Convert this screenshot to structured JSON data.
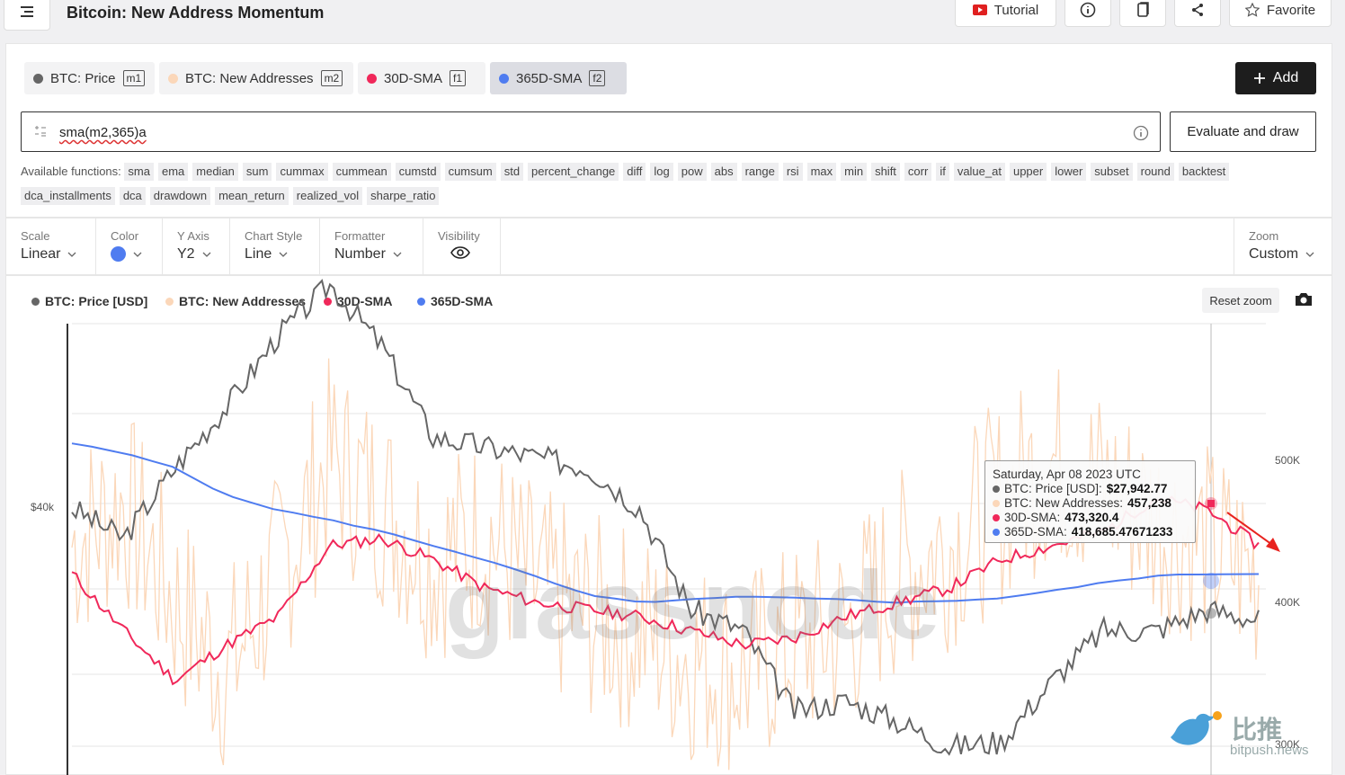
{
  "header": {
    "title": "Bitcoin: New Address Momentum",
    "tutorial_label": "Tutorial",
    "favorite_label": "Favorite"
  },
  "metrics": [
    {
      "label": "BTC: Price",
      "tag": "m1",
      "color": "#666666"
    },
    {
      "label": "BTC: New Addresses",
      "tag": "m2",
      "color": "#fbd7b9"
    },
    {
      "label": "30D-SMA",
      "tag": "f1",
      "color": "#f0285a"
    },
    {
      "label": "365D-SMA",
      "tag": "f2",
      "color": "#4f7cf0"
    }
  ],
  "add_label": "Add",
  "formula": {
    "value": "sma(m2,365)a"
  },
  "evaluate_label": "Evaluate and draw",
  "functions_label": "Available functions:",
  "functions": [
    "sma",
    "ema",
    "median",
    "sum",
    "cummax",
    "cummean",
    "cumstd",
    "cumsum",
    "std",
    "percent_change",
    "diff",
    "log",
    "pow",
    "abs",
    "range",
    "rsi",
    "max",
    "min",
    "shift",
    "corr",
    "if",
    "value_at",
    "upper",
    "lower",
    "subset",
    "round",
    "backtest",
    "dca_installments",
    "dca",
    "drawdown",
    "mean_return",
    "realized_vol",
    "sharpe_ratio"
  ],
  "settings": {
    "scale": {
      "label": "Scale",
      "value": "Linear"
    },
    "color": {
      "label": "Color",
      "value": "#4f7cf0"
    },
    "yaxis": {
      "label": "Y Axis",
      "value": "Y2"
    },
    "style": {
      "label": "Chart Style",
      "value": "Line"
    },
    "formatter": {
      "label": "Formatter",
      "value": "Number"
    },
    "visibility": {
      "label": "Visibility"
    },
    "zoom": {
      "label": "Zoom",
      "value": "Custom"
    }
  },
  "legend": [
    "BTC: Price [USD]",
    "BTC: New Addresses",
    "30D-SMA",
    "365D-SMA"
  ],
  "reset_zoom_label": "Reset zoom",
  "tooltip": {
    "date": "Saturday, Apr 08 2023 UTC",
    "rows": [
      {
        "label": "BTC: Price [USD]:",
        "value": "$27,942.77"
      },
      {
        "label": "BTC: New Addresses:",
        "value": "457,238"
      },
      {
        "label": "30D-SMA:",
        "value": "473,320.4"
      },
      {
        "label": "365D-SMA:",
        "value": "418,685.47671233"
      }
    ]
  },
  "axes": {
    "left_tick": "$40k",
    "right_ticks": [
      "500K",
      "400K",
      "300K"
    ]
  },
  "watermark": "glassnode",
  "bitpush": {
    "cn": "比推",
    "url": "bitpush.news"
  },
  "chart_data": {
    "type": "line",
    "y2_ticks": [
      300000,
      400000,
      500000
    ],
    "y_ticks": [
      40000
    ],
    "series": [
      {
        "name": "BTC: Price [USD]",
        "axis": "left",
        "color": "#666666",
        "values": [
          40000,
          37000,
          44000,
          50000,
          57000,
          62000,
          56000,
          47000,
          46000,
          45000,
          44000,
          40000,
          30000,
          28000,
          20000,
          21000,
          19000,
          16500,
          17000,
          23000,
          28000,
          27942,
          30000,
          29000
        ]
      },
      {
        "name": "BTC: New Addresses",
        "axis": "right",
        "color": "#fbd7b9",
        "values": [
          440000,
          470000,
          400000,
          350000,
          420000,
          500000,
          470000,
          430000,
          450000,
          410000,
          390000,
          380000,
          360000,
          350000,
          370000,
          380000,
          420000,
          440000,
          470000,
          500000,
          480000,
          457238,
          440000,
          420000
        ]
      },
      {
        "name": "30D-SMA",
        "axis": "right",
        "color": "#f0285a",
        "values": [
          420000,
          380000,
          345000,
          370000,
          390000,
          440000,
          445000,
          430000,
          410000,
          400000,
          395000,
          390000,
          380000,
          370000,
          375000,
          390000,
          400000,
          410000,
          430000,
          440000,
          450000,
          473320,
          465000,
          440000
        ]
      },
      {
        "name": "365D-SMA",
        "axis": "right",
        "color": "#4f7cf0",
        "values": [
          512000,
          505000,
          495000,
          475000,
          465000,
          458000,
          450000,
          440000,
          430000,
          418000,
          405000,
          400000,
          402000,
          404000,
          403000,
          402000,
          400000,
          401000,
          403000,
          408000,
          414000,
          418685,
          420000,
          420000
        ]
      }
    ],
    "annotations": [
      "red arrow pointing down-right at end of 30D-SMA"
    ]
  }
}
